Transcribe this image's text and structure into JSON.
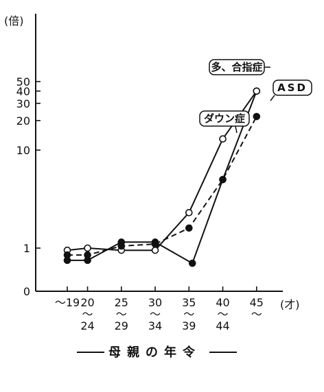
{
  "chart_data": {
    "type": "line",
    "y_unit_label": "(倍)",
    "x_unit_label": "(才)",
    "xlabel": "母親の年令",
    "y_scale": "log",
    "y_ticks": [
      {
        "value": 0,
        "label": "0"
      },
      {
        "value": 1,
        "label": "1"
      },
      {
        "value": 10,
        "label": "10"
      },
      {
        "value": 20,
        "label": "20"
      },
      {
        "value": 30,
        "label": "30"
      },
      {
        "value": 40,
        "label": "40"
      },
      {
        "value": 50,
        "label": "50"
      }
    ],
    "x_ticks": [
      {
        "x": 19,
        "lines": [
          "～19"
        ]
      },
      {
        "x": 22,
        "lines": [
          "20",
          "～",
          "24"
        ]
      },
      {
        "x": 27,
        "lines": [
          "25",
          "～",
          "29"
        ]
      },
      {
        "x": 32,
        "lines": [
          "30",
          "～",
          "34"
        ]
      },
      {
        "x": 37,
        "lines": [
          "35",
          "～",
          "39"
        ]
      },
      {
        "x": 42,
        "lines": [
          "40",
          "～",
          "44"
        ]
      },
      {
        "x": 47,
        "lines": [
          "45",
          "～"
        ]
      }
    ],
    "series": [
      {
        "name": "ダウン症",
        "style": "solid",
        "marker": "filled",
        "points": [
          [
            19,
            0.75
          ],
          [
            22,
            0.75
          ],
          [
            27,
            1.15
          ],
          [
            32,
            1.15
          ],
          [
            37.5,
            0.7
          ],
          [
            42,
            5
          ],
          [
            47,
            40
          ]
        ]
      },
      {
        "name": "多、合指症",
        "style": "solid",
        "marker": "open",
        "points": [
          [
            19,
            0.95
          ],
          [
            22,
            1.0
          ],
          [
            27,
            0.95
          ],
          [
            32,
            0.95
          ],
          [
            37,
            2.3
          ],
          [
            42,
            13
          ],
          [
            47,
            40
          ]
        ]
      },
      {
        "name": "ASD",
        "style": "dashed",
        "marker": "filled",
        "points": [
          [
            19,
            0.85
          ],
          [
            22,
            0.85
          ],
          [
            27,
            1.05
          ],
          [
            32,
            1.1
          ],
          [
            37,
            1.6
          ],
          [
            42,
            5
          ],
          [
            47,
            22
          ]
        ]
      }
    ]
  }
}
